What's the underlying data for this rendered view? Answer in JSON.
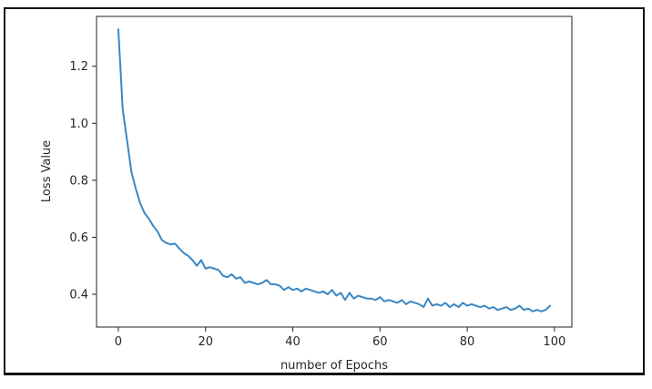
{
  "chart_data": {
    "type": "line",
    "title": "",
    "xlabel": "number of Epochs",
    "ylabel": "Loss Value",
    "xlim": [
      -5,
      104
    ],
    "ylim": [
      0.285,
      1.375
    ],
    "xticks": [
      0,
      20,
      40,
      60,
      80,
      100
    ],
    "yticks": [
      0.4,
      0.6,
      0.8,
      1.0,
      1.2
    ],
    "grid": false,
    "legend": "none",
    "colors": {
      "line": "#3a87c3",
      "axes": "#222222",
      "text": "#262626"
    },
    "series": [
      {
        "x": [
          0,
          1,
          2,
          3,
          4,
          5,
          6,
          7,
          8,
          9,
          10,
          11,
          12,
          13,
          14,
          15,
          16,
          17,
          18,
          19,
          20,
          21,
          22,
          23,
          24,
          25,
          26,
          27,
          28,
          29,
          30,
          31,
          32,
          33,
          34,
          35,
          36,
          37,
          38,
          39,
          40,
          41,
          42,
          43,
          44,
          45,
          46,
          47,
          48,
          49,
          50,
          51,
          52,
          53,
          54,
          55,
          56,
          57,
          58,
          59,
          60,
          61,
          62,
          63,
          64,
          65,
          66,
          67,
          68,
          69,
          70,
          71,
          72,
          73,
          74,
          75,
          76,
          77,
          78,
          79,
          80,
          81,
          82,
          83,
          84,
          85,
          86,
          87,
          88,
          89,
          90,
          91,
          92,
          93,
          94,
          95,
          96,
          97,
          98,
          99
        ],
        "values": [
          1.33,
          1.05,
          0.94,
          0.83,
          0.77,
          0.72,
          0.685,
          0.665,
          0.64,
          0.62,
          0.59,
          0.58,
          0.575,
          0.578,
          0.56,
          0.545,
          0.535,
          0.52,
          0.5,
          0.52,
          0.49,
          0.495,
          0.49,
          0.485,
          0.465,
          0.46,
          0.47,
          0.455,
          0.46,
          0.44,
          0.445,
          0.44,
          0.435,
          0.44,
          0.45,
          0.435,
          0.435,
          0.43,
          0.415,
          0.425,
          0.415,
          0.42,
          0.41,
          0.42,
          0.415,
          0.41,
          0.405,
          0.41,
          0.4,
          0.415,
          0.395,
          0.405,
          0.38,
          0.405,
          0.385,
          0.395,
          0.39,
          0.385,
          0.385,
          0.38,
          0.39,
          0.375,
          0.38,
          0.375,
          0.37,
          0.38,
          0.365,
          0.375,
          0.37,
          0.365,
          0.355,
          0.385,
          0.36,
          0.365,
          0.36,
          0.37,
          0.355,
          0.365,
          0.355,
          0.37,
          0.36,
          0.365,
          0.36,
          0.355,
          0.36,
          0.35,
          0.355,
          0.345,
          0.35,
          0.355,
          0.345,
          0.35,
          0.36,
          0.345,
          0.35,
          0.34,
          0.345,
          0.34,
          0.345,
          0.36
        ]
      }
    ]
  }
}
